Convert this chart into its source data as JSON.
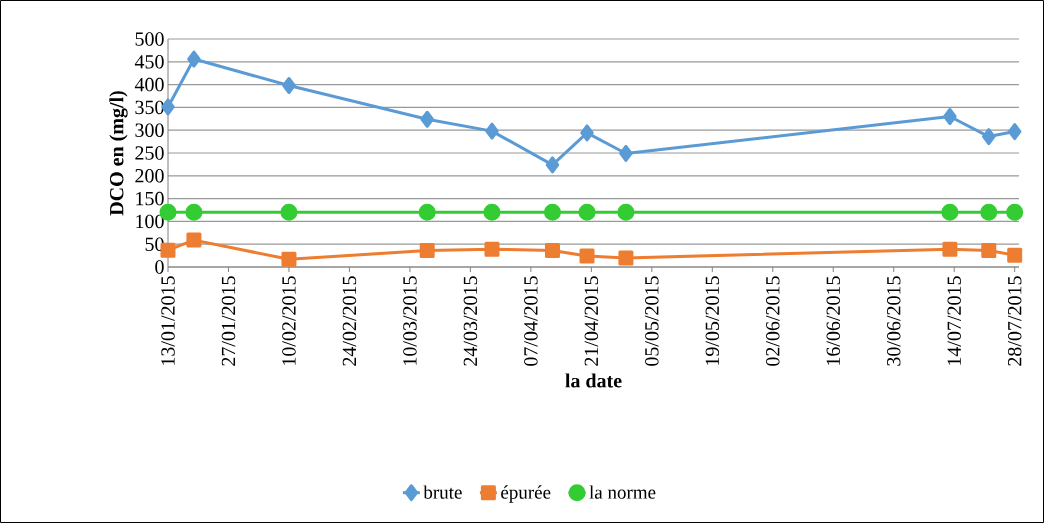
{
  "chart_data": {
    "type": "line",
    "xlabel": "la date",
    "ylabel": "DCO en (mg/l)",
    "x": [
      "2015-01-13",
      "2015-01-19",
      "2015-02-10",
      "2015-03-14",
      "2015-03-29",
      "2015-04-12",
      "2015-04-20",
      "2015-04-29",
      "2015-07-13",
      "2015-07-22",
      "2015-07-28"
    ],
    "series": [
      {
        "name": "brute",
        "color": "#5b9bd5",
        "marker": "diamond",
        "values": [
          351,
          456,
          398,
          324,
          298,
          224,
          294,
          249,
          330,
          286,
          297
        ]
      },
      {
        "name": "épurée",
        "color": "#ed7d31",
        "marker": "square",
        "values": [
          37,
          59,
          17,
          36,
          39,
          36,
          24,
          20,
          39,
          36,
          26
        ]
      },
      {
        "name": "la norme",
        "color": "#33cc33",
        "marker": "circle",
        "values": [
          120,
          120,
          120,
          120,
          120,
          120,
          120,
          120,
          120,
          120,
          120
        ]
      }
    ],
    "xlim": [
      "2015-01-13",
      "2015-07-29"
    ],
    "xticks": [
      {
        "value": "2015-01-13",
        "label": "13/01/2015"
      },
      {
        "value": "2015-01-27",
        "label": "27/01/2015"
      },
      {
        "value": "2015-02-10",
        "label": "10/02/2015"
      },
      {
        "value": "2015-02-24",
        "label": "24/02/2015"
      },
      {
        "value": "2015-03-10",
        "label": "10/03/2015"
      },
      {
        "value": "2015-03-24",
        "label": "24/03/2015"
      },
      {
        "value": "2015-04-07",
        "label": "07/04/2015"
      },
      {
        "value": "2015-04-21",
        "label": "21/04/2015"
      },
      {
        "value": "2015-05-05",
        "label": "05/05/2015"
      },
      {
        "value": "2015-05-19",
        "label": "19/05/2015"
      },
      {
        "value": "2015-06-02",
        "label": "02/06/2015"
      },
      {
        "value": "2015-06-16",
        "label": "16/06/2015"
      },
      {
        "value": "2015-06-30",
        "label": "30/06/2015"
      },
      {
        "value": "2015-07-14",
        "label": "14/07/2015"
      },
      {
        "value": "2015-07-28",
        "label": "28/07/2015"
      }
    ],
    "ylim": [
      0,
      500
    ],
    "yticks": [
      0,
      50,
      100,
      150,
      200,
      250,
      300,
      350,
      400,
      450,
      500
    ],
    "grid": "y",
    "legend": "bottom"
  }
}
